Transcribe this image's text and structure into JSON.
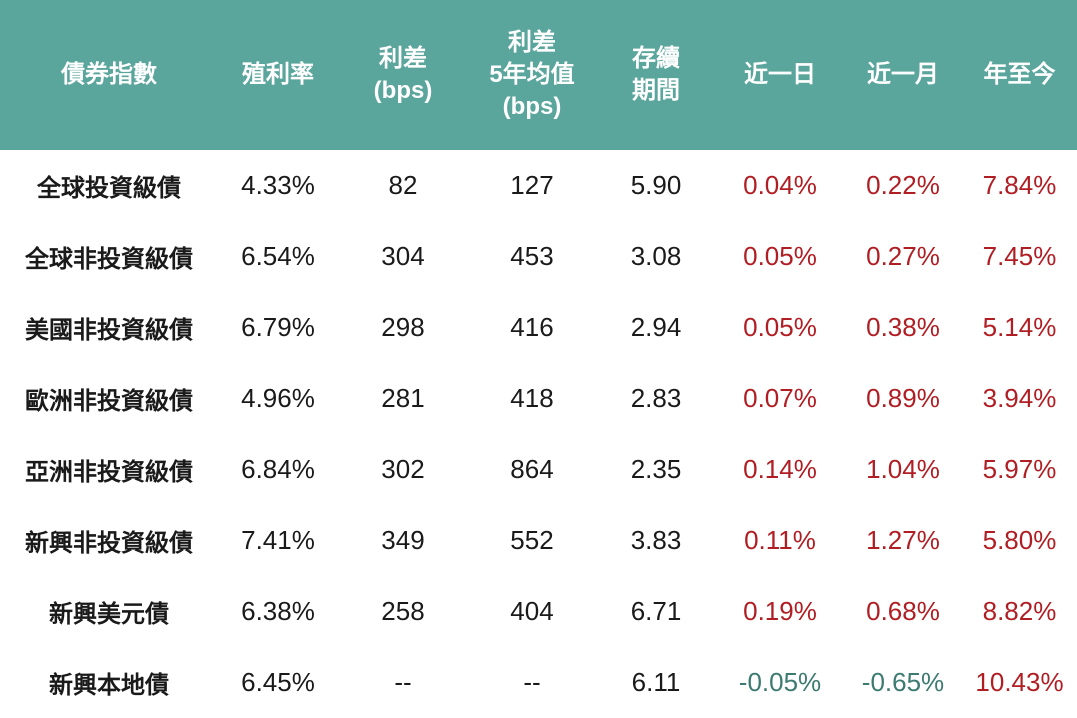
{
  "colors": {
    "header_bg": "#5aa59c",
    "header_text": "#ffffff",
    "positive": "#b01e23",
    "negative": "#3d7a70",
    "text": "#1a1a1a"
  },
  "chart_data": {
    "type": "table",
    "columns": [
      "債券指數",
      "殖利率",
      "利差\n(bps)",
      "利差\n5年均值\n(bps)",
      "存續\n期間",
      "近一日",
      "近一月",
      "年至今"
    ],
    "rows": [
      {
        "name": "全球投資級債",
        "yield": "4.33%",
        "spread": "82",
        "spread_5y": "127",
        "duration": "5.90",
        "d1": "0.04%",
        "m1": "0.22%",
        "ytd": "7.84%",
        "d1_sign": "pos",
        "m1_sign": "pos",
        "ytd_sign": "pos"
      },
      {
        "name": "全球非投資級債",
        "yield": "6.54%",
        "spread": "304",
        "spread_5y": "453",
        "duration": "3.08",
        "d1": "0.05%",
        "m1": "0.27%",
        "ytd": "7.45%",
        "d1_sign": "pos",
        "m1_sign": "pos",
        "ytd_sign": "pos"
      },
      {
        "name": "美國非投資級債",
        "yield": "6.79%",
        "spread": "298",
        "spread_5y": "416",
        "duration": "2.94",
        "d1": "0.05%",
        "m1": "0.38%",
        "ytd": "5.14%",
        "d1_sign": "pos",
        "m1_sign": "pos",
        "ytd_sign": "pos"
      },
      {
        "name": "歐洲非投資級債",
        "yield": "4.96%",
        "spread": "281",
        "spread_5y": "418",
        "duration": "2.83",
        "d1": "0.07%",
        "m1": "0.89%",
        "ytd": "3.94%",
        "d1_sign": "pos",
        "m1_sign": "pos",
        "ytd_sign": "pos"
      },
      {
        "name": "亞洲非投資級債",
        "yield": "6.84%",
        "spread": "302",
        "spread_5y": "864",
        "duration": "2.35",
        "d1": "0.14%",
        "m1": "1.04%",
        "ytd": "5.97%",
        "d1_sign": "pos",
        "m1_sign": "pos",
        "ytd_sign": "pos"
      },
      {
        "name": "新興非投資級債",
        "yield": "7.41%",
        "spread": "349",
        "spread_5y": "552",
        "duration": "3.83",
        "d1": "0.11%",
        "m1": "1.27%",
        "ytd": "5.80%",
        "d1_sign": "pos",
        "m1_sign": "pos",
        "ytd_sign": "pos"
      },
      {
        "name": "新興美元債",
        "yield": "6.38%",
        "spread": "258",
        "spread_5y": "404",
        "duration": "6.71",
        "d1": "0.19%",
        "m1": "0.68%",
        "ytd": "8.82%",
        "d1_sign": "pos",
        "m1_sign": "pos",
        "ytd_sign": "pos"
      },
      {
        "name": "新興本地債",
        "yield": "6.45%",
        "spread": "--",
        "spread_5y": "--",
        "duration": "6.11",
        "d1": "-0.05%",
        "m1": "-0.65%",
        "ytd": "10.43%",
        "d1_sign": "neg",
        "m1_sign": "neg",
        "ytd_sign": "pos"
      }
    ]
  }
}
